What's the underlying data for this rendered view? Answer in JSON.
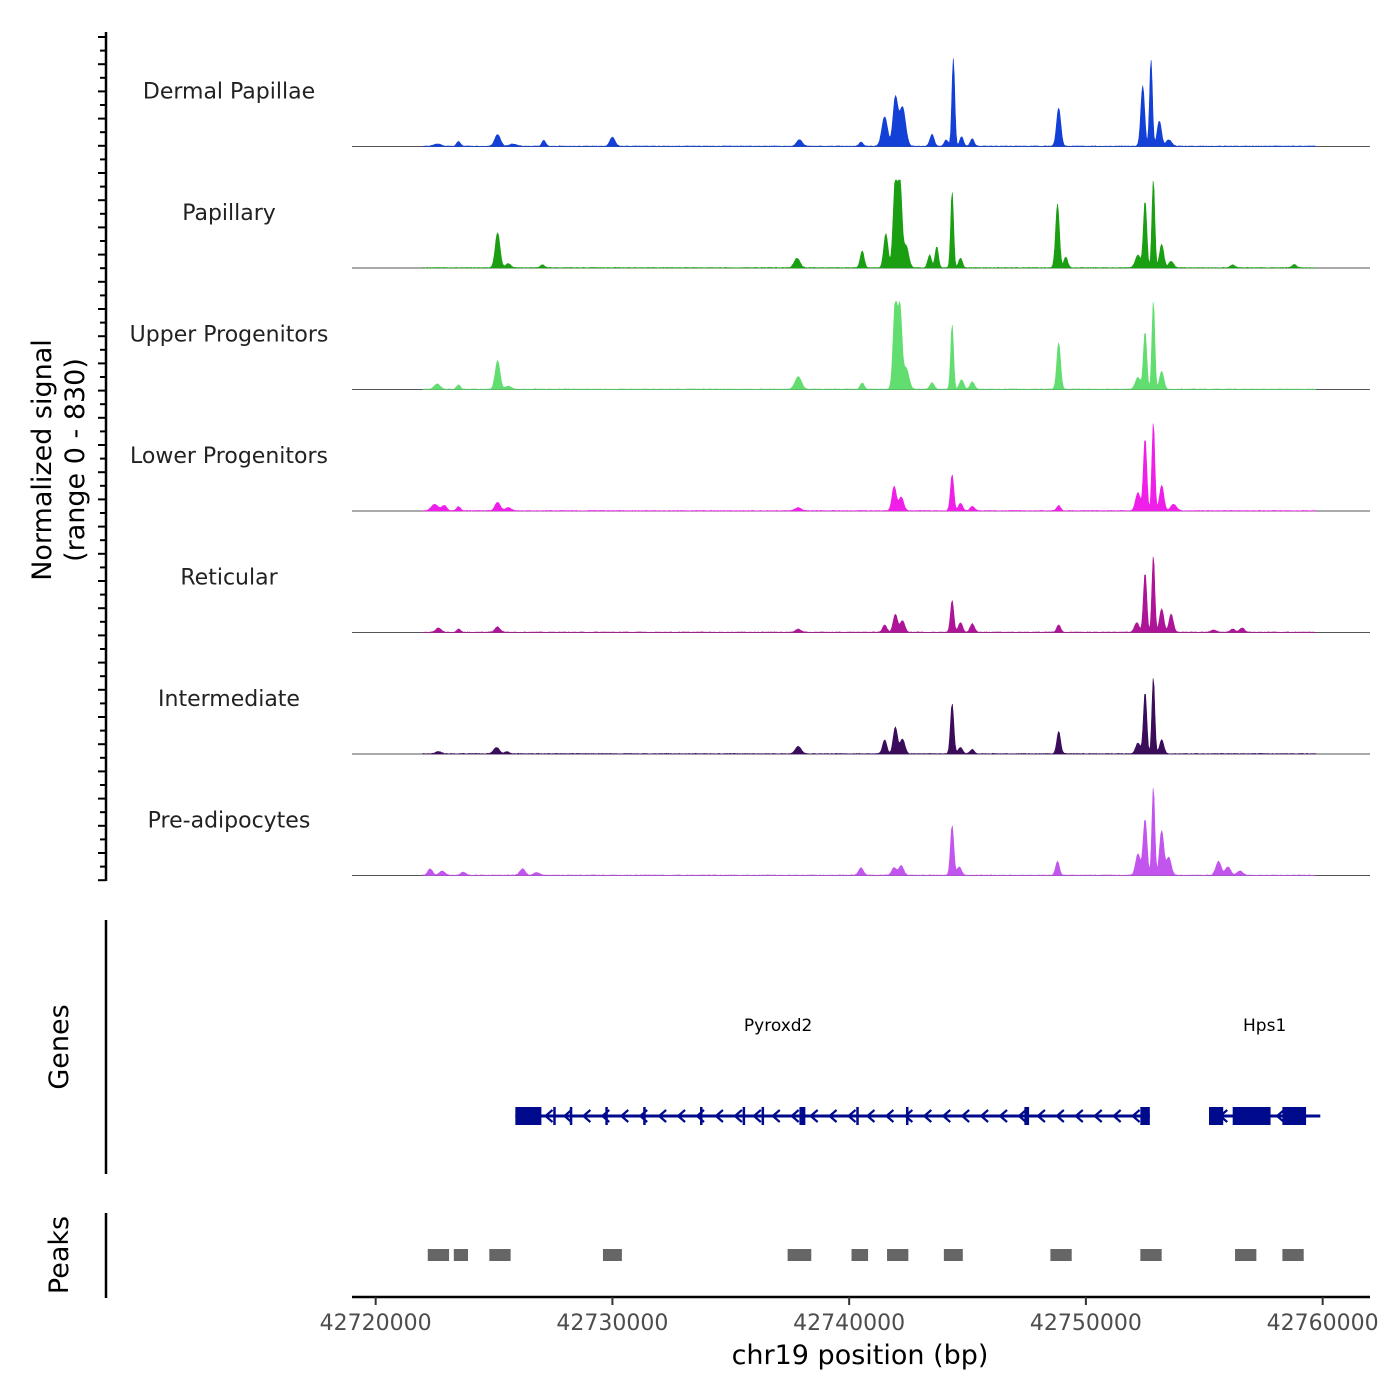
{
  "chart_data": {
    "type": "area",
    "title": "",
    "xlabel": "chr19 position (bp)",
    "ylabel_line1": "Normalized signal",
    "ylabel_line2": "(range 0 - 830)",
    "y_range": [
      0,
      830
    ],
    "xlim": [
      42719000,
      42762000
    ],
    "x_ticks": [
      42720000,
      42730000,
      42740000,
      42750000,
      42760000
    ],
    "x_tick_labels": [
      "42720000",
      "42730000",
      "42740000",
      "42750000",
      "42760000"
    ],
    "track_panel_labels": {
      "genes": "Genes",
      "peaks": "Peaks"
    },
    "series": [
      {
        "name": "Dermal Papillae",
        "color": "#1340d6",
        "peaks": [
          [
            42722600,
            22,
            140
          ],
          [
            42723500,
            45,
            80
          ],
          [
            42725150,
            110,
            120
          ],
          [
            42725800,
            20,
            150
          ],
          [
            42727100,
            55,
            80
          ],
          [
            42730000,
            85,
            110
          ],
          [
            42737900,
            60,
            120
          ],
          [
            42740500,
            40,
            80
          ],
          [
            42741500,
            280,
            120
          ],
          [
            42741950,
            450,
            100
          ],
          [
            42742250,
            370,
            130
          ],
          [
            42743500,
            110,
            90
          ],
          [
            42744100,
            60,
            80
          ],
          [
            42744400,
            830,
            60
          ],
          [
            42744750,
            90,
            80
          ],
          [
            42745200,
            70,
            80
          ],
          [
            42748850,
            360,
            90
          ],
          [
            42752400,
            570,
            80
          ],
          [
            42752750,
            820,
            60
          ],
          [
            42753100,
            240,
            90
          ],
          [
            42753500,
            60,
            120
          ]
        ]
      },
      {
        "name": "Papillary",
        "color": "#1a9e12",
        "peaks": [
          [
            42725150,
            330,
            100
          ],
          [
            42725600,
            40,
            100
          ],
          [
            42727050,
            30,
            80
          ],
          [
            42737800,
            90,
            120
          ],
          [
            42740550,
            160,
            80
          ],
          [
            42741550,
            320,
            90
          ],
          [
            42741950,
            830,
            90
          ],
          [
            42742150,
            780,
            80
          ],
          [
            42742400,
            210,
            110
          ],
          [
            42743400,
            120,
            80
          ],
          [
            42743700,
            200,
            70
          ],
          [
            42744350,
            720,
            60
          ],
          [
            42744700,
            90,
            80
          ],
          [
            42748800,
            600,
            80
          ],
          [
            42749150,
            100,
            80
          ],
          [
            42752200,
            120,
            110
          ],
          [
            42752500,
            630,
            70
          ],
          [
            42752850,
            830,
            60
          ],
          [
            42753200,
            220,
            90
          ],
          [
            42753600,
            60,
            100
          ],
          [
            42756200,
            25,
            100
          ],
          [
            42758800,
            30,
            90
          ]
        ]
      },
      {
        "name": "Upper Progenitors",
        "color": "#62de70",
        "peaks": [
          [
            42722600,
            50,
            120
          ],
          [
            42723500,
            40,
            80
          ],
          [
            42725150,
            270,
            100
          ],
          [
            42725600,
            30,
            120
          ],
          [
            42737850,
            120,
            130
          ],
          [
            42740550,
            60,
            80
          ],
          [
            42741950,
            830,
            90
          ],
          [
            42742150,
            720,
            80
          ],
          [
            42742400,
            200,
            120
          ],
          [
            42743500,
            60,
            90
          ],
          [
            42744350,
            610,
            60
          ],
          [
            42744750,
            90,
            90
          ],
          [
            42745200,
            70,
            90
          ],
          [
            42748850,
            440,
            80
          ],
          [
            42752200,
            110,
            110
          ],
          [
            42752500,
            540,
            70
          ],
          [
            42752850,
            830,
            60
          ],
          [
            42753200,
            170,
            90
          ]
        ]
      },
      {
        "name": "Lower Progenitors",
        "color": "#ef1ee8",
        "peaks": [
          [
            42722500,
            60,
            150
          ],
          [
            42722900,
            50,
            100
          ],
          [
            42723500,
            40,
            80
          ],
          [
            42725150,
            80,
            110
          ],
          [
            42725600,
            30,
            120
          ],
          [
            42737850,
            30,
            120
          ],
          [
            42741900,
            230,
            90
          ],
          [
            42742200,
            130,
            100
          ],
          [
            42744350,
            340,
            70
          ],
          [
            42744700,
            70,
            90
          ],
          [
            42745200,
            40,
            90
          ],
          [
            42748850,
            50,
            80
          ],
          [
            42752200,
            170,
            100
          ],
          [
            42752500,
            680,
            70
          ],
          [
            42752850,
            830,
            60
          ],
          [
            42753200,
            240,
            90
          ],
          [
            42753700,
            60,
            120
          ]
        ]
      },
      {
        "name": "Reticular",
        "color": "#ad1497",
        "peaks": [
          [
            42722650,
            40,
            110
          ],
          [
            42723500,
            30,
            80
          ],
          [
            42725150,
            50,
            110
          ],
          [
            42737850,
            30,
            110
          ],
          [
            42741500,
            70,
            90
          ],
          [
            42741950,
            170,
            90
          ],
          [
            42742250,
            110,
            100
          ],
          [
            42744350,
            300,
            70
          ],
          [
            42744700,
            90,
            90
          ],
          [
            42745200,
            80,
            90
          ],
          [
            42748850,
            70,
            80
          ],
          [
            42752150,
            90,
            100
          ],
          [
            42752500,
            560,
            70
          ],
          [
            42752850,
            720,
            60
          ],
          [
            42753200,
            220,
            90
          ],
          [
            42753600,
            170,
            90
          ],
          [
            42755400,
            20,
            120
          ],
          [
            42756200,
            30,
            100
          ],
          [
            42756600,
            40,
            100
          ]
        ]
      },
      {
        "name": "Intermediate",
        "color": "#3b0c5a",
        "peaks": [
          [
            42722650,
            20,
            120
          ],
          [
            42725100,
            60,
            120
          ],
          [
            42725550,
            20,
            100
          ],
          [
            42737850,
            70,
            120
          ],
          [
            42741500,
            130,
            90
          ],
          [
            42741950,
            250,
            90
          ],
          [
            42742250,
            140,
            100
          ],
          [
            42744350,
            470,
            70
          ],
          [
            42744700,
            60,
            90
          ],
          [
            42745200,
            40,
            90
          ],
          [
            42748850,
            210,
            80
          ],
          [
            42752200,
            100,
            100
          ],
          [
            42752500,
            580,
            70
          ],
          [
            42752850,
            720,
            60
          ],
          [
            42753200,
            130,
            90
          ]
        ]
      },
      {
        "name": "Pre-adipocytes",
        "color": "#c255ee",
        "peaks": [
          [
            42722300,
            60,
            100
          ],
          [
            42722800,
            40,
            120
          ],
          [
            42723700,
            30,
            100
          ],
          [
            42726200,
            60,
            110
          ],
          [
            42726800,
            25,
            120
          ],
          [
            42740500,
            70,
            100
          ],
          [
            42741900,
            70,
            100
          ],
          [
            42742200,
            90,
            100
          ],
          [
            42744350,
            470,
            70
          ],
          [
            42744650,
            80,
            90
          ],
          [
            42748800,
            130,
            80
          ],
          [
            42752200,
            200,
            100
          ],
          [
            42752500,
            530,
            80
          ],
          [
            42752850,
            830,
            60
          ],
          [
            42753200,
            420,
            90
          ],
          [
            42753500,
            170,
            100
          ],
          [
            42755600,
            130,
            110
          ],
          [
            42756000,
            80,
            110
          ],
          [
            42756500,
            40,
            120
          ]
        ]
      }
    ],
    "genes": [
      {
        "name": "Pyroxd2",
        "strand": "-",
        "start": 42725900,
        "end": 42752700,
        "exons": [
          [
            42725900,
            42727000
          ],
          [
            42727500,
            42727560
          ],
          [
            42728200,
            42728260
          ],
          [
            42729700,
            42729760
          ],
          [
            42731300,
            42731360
          ],
          [
            42733700,
            42733800
          ],
          [
            42735500,
            42735600
          ],
          [
            42736300,
            42736400
          ],
          [
            42737900,
            42738150
          ],
          [
            42740300,
            42740400
          ],
          [
            42742400,
            42742500
          ],
          [
            42747400,
            42747600
          ],
          [
            42752300,
            42752700
          ]
        ]
      },
      {
        "name": "Hps1",
        "strand": "-",
        "start": 42755200,
        "end": 42759900,
        "exons": [
          [
            42755200,
            42755800
          ],
          [
            42756200,
            42757800
          ],
          [
            42758300,
            42759300
          ]
        ]
      }
    ],
    "peaks": [
      [
        42722200,
        42723100
      ],
      [
        42723300,
        42723900
      ],
      [
        42724800,
        42725700
      ],
      [
        42729600,
        42730400
      ],
      [
        42737400,
        42738400
      ],
      [
        42740100,
        42740800
      ],
      [
        42741600,
        42742500
      ],
      [
        42744000,
        42744800
      ],
      [
        42748500,
        42749400
      ],
      [
        42752300,
        42753200
      ],
      [
        42756300,
        42757200
      ],
      [
        42758300,
        42759200
      ]
    ]
  }
}
